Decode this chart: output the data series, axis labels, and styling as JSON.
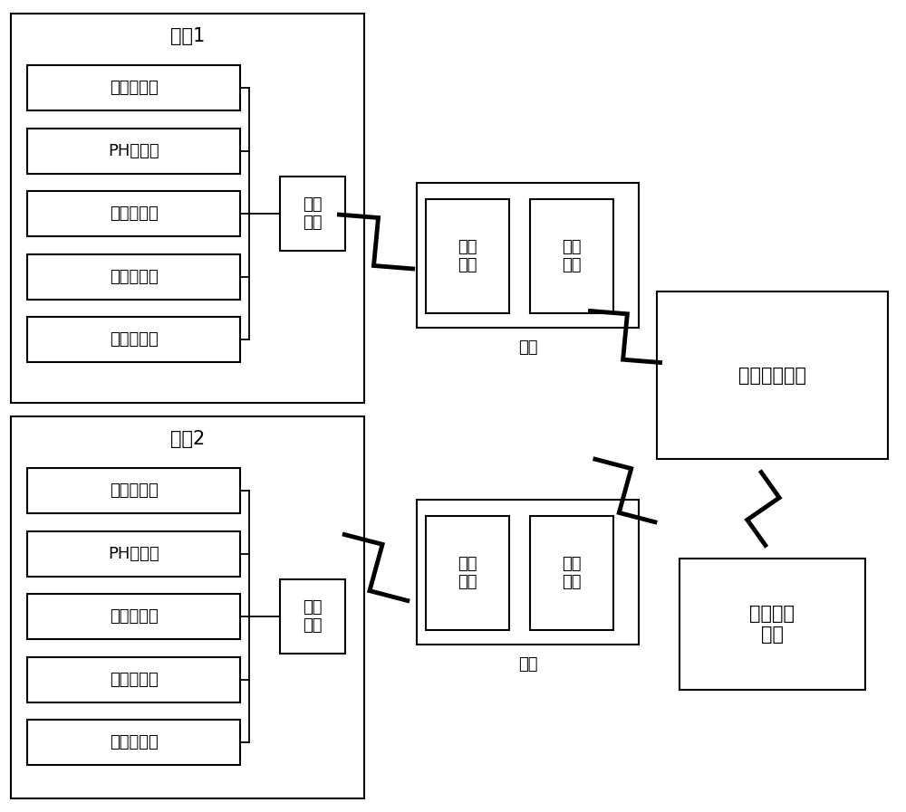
{
  "background_color": "#ffffff",
  "sensor_labels_1": [
    "溶氧传感器",
    "PH传感器",
    "温度传感器",
    "水位传感器",
    "其他传感器"
  ],
  "sensor_labels_2": [
    "溶氧传感器",
    "PH传感器",
    "温度传感器",
    "水位传感器",
    "其他传感器"
  ],
  "farmer1_label": "农户1",
  "farmer2_label": "农户2",
  "router_label": "路由\n节点",
  "gateway_label1": "网关",
  "gateway_label2": "网关",
  "hub_label": "汇聚\n节点",
  "comm_label": "通讯\n模块",
  "mgmt_label": "管理服务平台",
  "user_label": "用户服务\n平台",
  "line_color": "#000000",
  "box_color": "#ffffff",
  "font_size_large": 15,
  "font_size_med": 13,
  "font_size_small": 12,
  "fig_width": 10.0,
  "fig_height": 8.97,
  "dpi": 100
}
